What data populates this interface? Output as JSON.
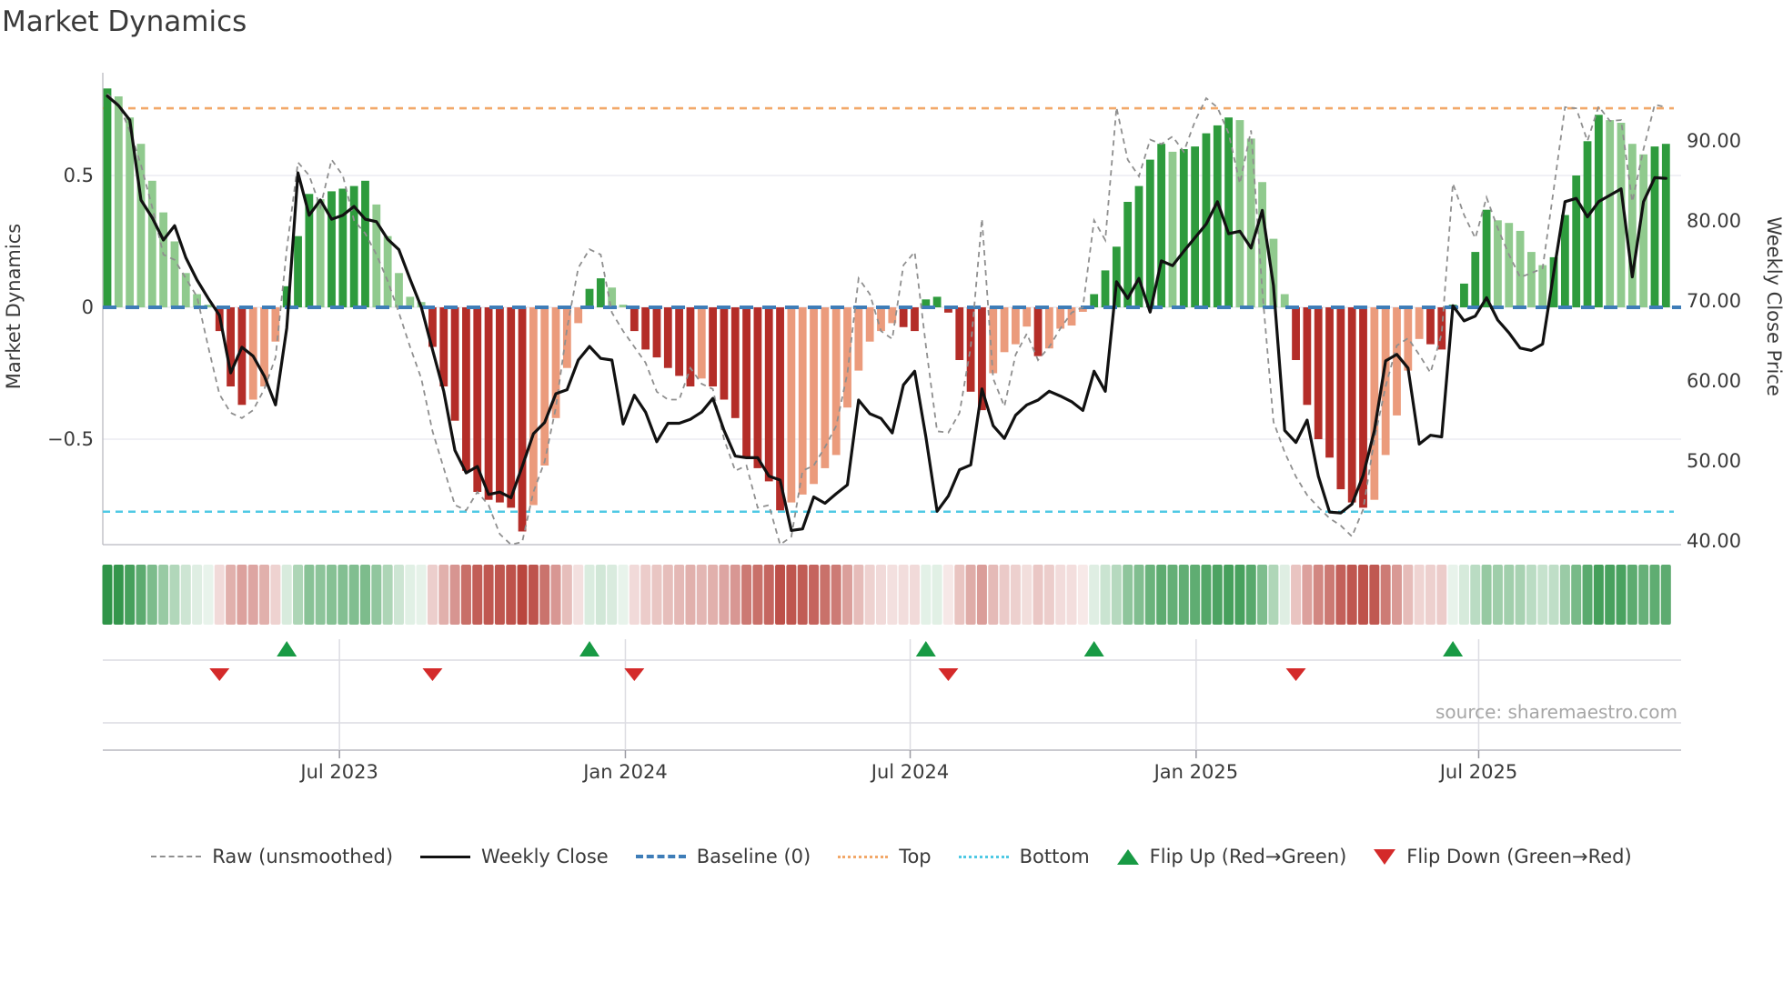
{
  "title": "Market Dynamics",
  "source": "source: sharemaestro.com",
  "left_axis": {
    "label": "Market Dynamics",
    "ticks": [
      "0.5",
      "0",
      "−0.5"
    ],
    "range": [
      -0.9,
      0.9
    ]
  },
  "right_axis": {
    "label": "Weekly Close Price",
    "ticks": [
      "90.00",
      "80.00",
      "70.00",
      "60.00",
      "50.00",
      "40.00"
    ],
    "range": [
      39.4,
      98.4
    ]
  },
  "x_axis": {
    "ticks": [
      {
        "label": "Jul 2023",
        "week": 20.7
      },
      {
        "label": "Jan 2024",
        "week": 46.2
      },
      {
        "label": "Jul 2024",
        "week": 71.6
      },
      {
        "label": "Jan 2025",
        "week": 97.1
      },
      {
        "label": "Jul 2025",
        "week": 122.3
      }
    ]
  },
  "legend": [
    {
      "style": "raw",
      "label": "Raw (unsmoothed)"
    },
    {
      "style": "close",
      "label": "Weekly Close"
    },
    {
      "style": "baseline",
      "label": "Baseline (0)"
    },
    {
      "style": "top",
      "label": "Top"
    },
    {
      "style": "bottom",
      "label": "Bottom"
    },
    {
      "style": "flip-up",
      "label": "Flip Up (Red→Green)"
    },
    {
      "style": "flip-down",
      "label": "Flip Down (Green→Red)"
    }
  ],
  "colors": {
    "bar_dark_green": "#2e9b3d",
    "bar_light_green": "#90ca8e",
    "bar_dark_red": "#b42d28",
    "bar_salmon": "#eb9b7c",
    "close_line": "#111111",
    "raw_line": "#8f8f8f",
    "baseline_blue": "#3e7db8",
    "top_orange": "#f2a869",
    "bottom_cyan": "#4fc9e4",
    "flip_green": "#189a44",
    "flip_red": "#d42a2a",
    "grid": "#ebebf2",
    "panel_grid": "#dcdce2",
    "axis_line": "#b9b9c0",
    "heat_green": "#2f9448",
    "heat_red": "#b9463e"
  },
  "chart_data": {
    "type": "combo: bar oscillator (left axis) + line overlays (weekly, approx Feb 2023 – Oct 2025)",
    "baseline": 0,
    "top_line": 0.755,
    "bottom_line": -0.775,
    "flip_up_weeks": [
      16,
      43,
      73,
      88,
      120
    ],
    "flip_down_weeks": [
      10,
      29,
      47,
      75,
      106
    ],
    "bar_values": [
      0.83,
      0.8,
      0.72,
      0.62,
      0.48,
      0.36,
      0.25,
      0.13,
      0.05,
      0.01,
      -0.09,
      -0.3,
      -0.37,
      -0.35,
      -0.3,
      -0.13,
      0.08,
      0.27,
      0.43,
      0.41,
      0.44,
      0.45,
      0.46,
      0.48,
      0.39,
      0.27,
      0.13,
      0.04,
      0.02,
      -0.15,
      -0.3,
      -0.43,
      -0.62,
      -0.7,
      -0.73,
      -0.74,
      -0.76,
      -0.85,
      -0.75,
      -0.6,
      -0.42,
      -0.23,
      -0.06,
      0.07,
      0.11,
      0.075,
      0.01,
      -0.09,
      -0.16,
      -0.19,
      -0.23,
      -0.26,
      -0.3,
      -0.27,
      -0.3,
      -0.35,
      -0.42,
      -0.57,
      -0.61,
      -0.66,
      -0.77,
      -0.74,
      -0.71,
      -0.67,
      -0.61,
      -0.56,
      -0.38,
      -0.24,
      -0.13,
      -0.09,
      -0.06,
      -0.075,
      -0.09,
      0.03,
      0.04,
      -0.02,
      -0.2,
      -0.32,
      -0.39,
      -0.25,
      -0.17,
      -0.14,
      -0.073,
      -0.185,
      -0.156,
      -0.081,
      -0.069,
      -0.017,
      0.05,
      0.14,
      0.23,
      0.4,
      0.46,
      0.56,
      0.62,
      0.59,
      0.6,
      0.61,
      0.66,
      0.69,
      0.72,
      0.71,
      0.64,
      0.475,
      0.26,
      0.05,
      -0.2,
      -0.37,
      -0.5,
      -0.57,
      -0.69,
      -0.74,
      -0.76,
      -0.73,
      -0.56,
      -0.41,
      -0.24,
      -0.12,
      -0.14,
      -0.16,
      0.01,
      0.09,
      0.21,
      0.37,
      0.33,
      0.32,
      0.29,
      0.21,
      0.16,
      0.19,
      0.35,
      0.5,
      0.63,
      0.73,
      0.71,
      0.7,
      0.62,
      0.58,
      0.61,
      0.62
    ],
    "bar_colors": [
      "dg",
      "lg",
      "lg",
      "lg",
      "lg",
      "lg",
      "lg",
      "lg",
      "lg",
      "lg",
      "dr",
      "dr",
      "dr",
      "lr",
      "lr",
      "lr",
      "dg",
      "dg",
      "dg",
      "lg",
      "dg",
      "dg",
      "dg",
      "dg",
      "lg",
      "lg",
      "lg",
      "lg",
      "lg",
      "dr",
      "dr",
      "dr",
      "dr",
      "dr",
      "dr",
      "dr",
      "dr",
      "dr",
      "lr",
      "lr",
      "lr",
      "lr",
      "lr",
      "dg",
      "dg",
      "lg",
      "lg",
      "dr",
      "dr",
      "dr",
      "dr",
      "dr",
      "dr",
      "lr",
      "dr",
      "dr",
      "dr",
      "dr",
      "dr",
      "dr",
      "dr",
      "lr",
      "lr",
      "lr",
      "lr",
      "lr",
      "lr",
      "lr",
      "lr",
      "lr",
      "lr",
      "dr",
      "dr",
      "dg",
      "dg",
      "dr",
      "dr",
      "dr",
      "dr",
      "lr",
      "lr",
      "lr",
      "lr",
      "dr",
      "lr",
      "lr",
      "lr",
      "lr",
      "dg",
      "dg",
      "dg",
      "dg",
      "dg",
      "dg",
      "dg",
      "lg",
      "dg",
      "dg",
      "dg",
      "dg",
      "dg",
      "lg",
      "lg",
      "lg",
      "lg",
      "lg",
      "dr",
      "dr",
      "dr",
      "dr",
      "dr",
      "dr",
      "dr",
      "lr",
      "lr",
      "lr",
      "lr",
      "lr",
      "dr",
      "dr",
      "dg",
      "dg",
      "dg",
      "dg",
      "lg",
      "lg",
      "lg",
      "lg",
      "lg",
      "dg",
      "dg",
      "dg",
      "dg",
      "dg",
      "lg",
      "lg",
      "lg",
      "lg",
      "dg",
      "dg"
    ],
    "weekly_close": [
      95.5,
      94.3,
      92.5,
      82.5,
      80.3,
      77.5,
      79.3,
      75.3,
      72.5,
      70.2,
      68.1,
      60.9,
      64.1,
      63.0,
      60.5,
      56.9,
      66.5,
      85.9,
      80.6,
      82.5,
      80.1,
      80.6,
      81.7,
      80.1,
      79.8,
      77.6,
      76.3,
      72.6,
      69.1,
      63.8,
      58.6,
      51.2,
      48.4,
      49.2,
      45.7,
      46.0,
      45.3,
      49.2,
      53.3,
      54.7,
      58.3,
      58.8,
      62.5,
      64.2,
      62.7,
      62.5,
      54.5,
      58.1,
      56.0,
      52.3,
      54.6,
      54.6,
      55.1,
      56.0,
      57.7,
      53.7,
      50.5,
      50.3,
      50.3,
      48.0,
      47.5,
      41.2,
      41.4,
      45.4,
      44.6,
      45.8,
      46.9,
      57.5,
      55.8,
      55.2,
      53.4,
      59.4,
      61.1,
      52.9,
      43.6,
      45.5,
      48.8,
      49.4,
      58.9,
      54.3,
      52.7,
      55.6,
      56.9,
      57.5,
      58.6,
      58.0,
      57.3,
      56.2,
      61.1,
      58.6,
      72.3,
      70.2,
      72.7,
      68.5,
      74.9,
      74.3,
      76.1,
      77.8,
      79.5,
      82.3,
      78.3,
      78.6,
      76.5,
      81.2,
      71.8,
      53.7,
      52.2,
      55.0,
      48.0,
      43.5,
      43.4,
      44.5,
      48.1,
      53.7,
      62.4,
      63.2,
      61.5,
      52.0,
      53.1,
      52.9,
      69.3,
      67.4,
      68.0,
      70.3,
      67.5,
      65.9,
      64.0,
      63.7,
      64.5,
      73.5,
      82.3,
      82.7,
      80.4,
      82.3,
      83.1,
      83.9,
      72.9,
      82.3,
      85.3,
      85.2
    ],
    "raw": [
      0.81,
      0.77,
      0.67,
      0.54,
      0.38,
      0.2,
      0.18,
      0.11,
      0.04,
      -0.15,
      -0.33,
      -0.4,
      -0.42,
      -0.39,
      -0.31,
      -0.19,
      0.22,
      0.55,
      0.5,
      0.38,
      0.56,
      0.5,
      0.33,
      0.28,
      0.2,
      0.1,
      -0.02,
      -0.15,
      -0.27,
      -0.47,
      -0.61,
      -0.75,
      -0.77,
      -0.7,
      -0.75,
      -0.86,
      -0.9,
      -0.89,
      -0.7,
      -0.585,
      -0.38,
      -0.08,
      0.15,
      0.22,
      0.2,
      -0.02,
      -0.09,
      -0.15,
      -0.21,
      -0.32,
      -0.35,
      -0.35,
      -0.23,
      -0.29,
      -0.31,
      -0.5,
      -0.62,
      -0.6,
      -0.76,
      -0.75,
      -0.9,
      -0.87,
      -0.62,
      -0.6,
      -0.53,
      -0.45,
      -0.25,
      0.11,
      0.05,
      -0.09,
      -0.12,
      0.16,
      0.21,
      -0.145,
      -0.47,
      -0.475,
      -0.4,
      -0.15,
      0.336,
      -0.27,
      -0.376,
      -0.18,
      -0.1,
      -0.2,
      -0.15,
      -0.08,
      -0.02,
      0.0,
      0.33,
      0.255,
      0.758,
      0.56,
      0.497,
      0.636,
      0.619,
      0.648,
      0.59,
      0.706,
      0.793,
      0.758,
      0.66,
      0.469,
      0.671,
      0.064,
      -0.434,
      -0.55,
      -0.642,
      -0.712,
      -0.758,
      -0.8,
      -0.828,
      -0.869,
      -0.766,
      -0.5,
      -0.3,
      -0.145,
      -0.117,
      -0.18,
      -0.248,
      -0.1,
      0.47,
      0.35,
      0.262,
      0.417,
      0.3,
      0.2,
      0.114,
      0.13,
      0.148,
      0.45,
      0.759,
      0.755,
      0.631,
      0.762,
      0.707,
      0.71,
      0.4,
      0.6,
      0.769,
      0.759
    ]
  }
}
